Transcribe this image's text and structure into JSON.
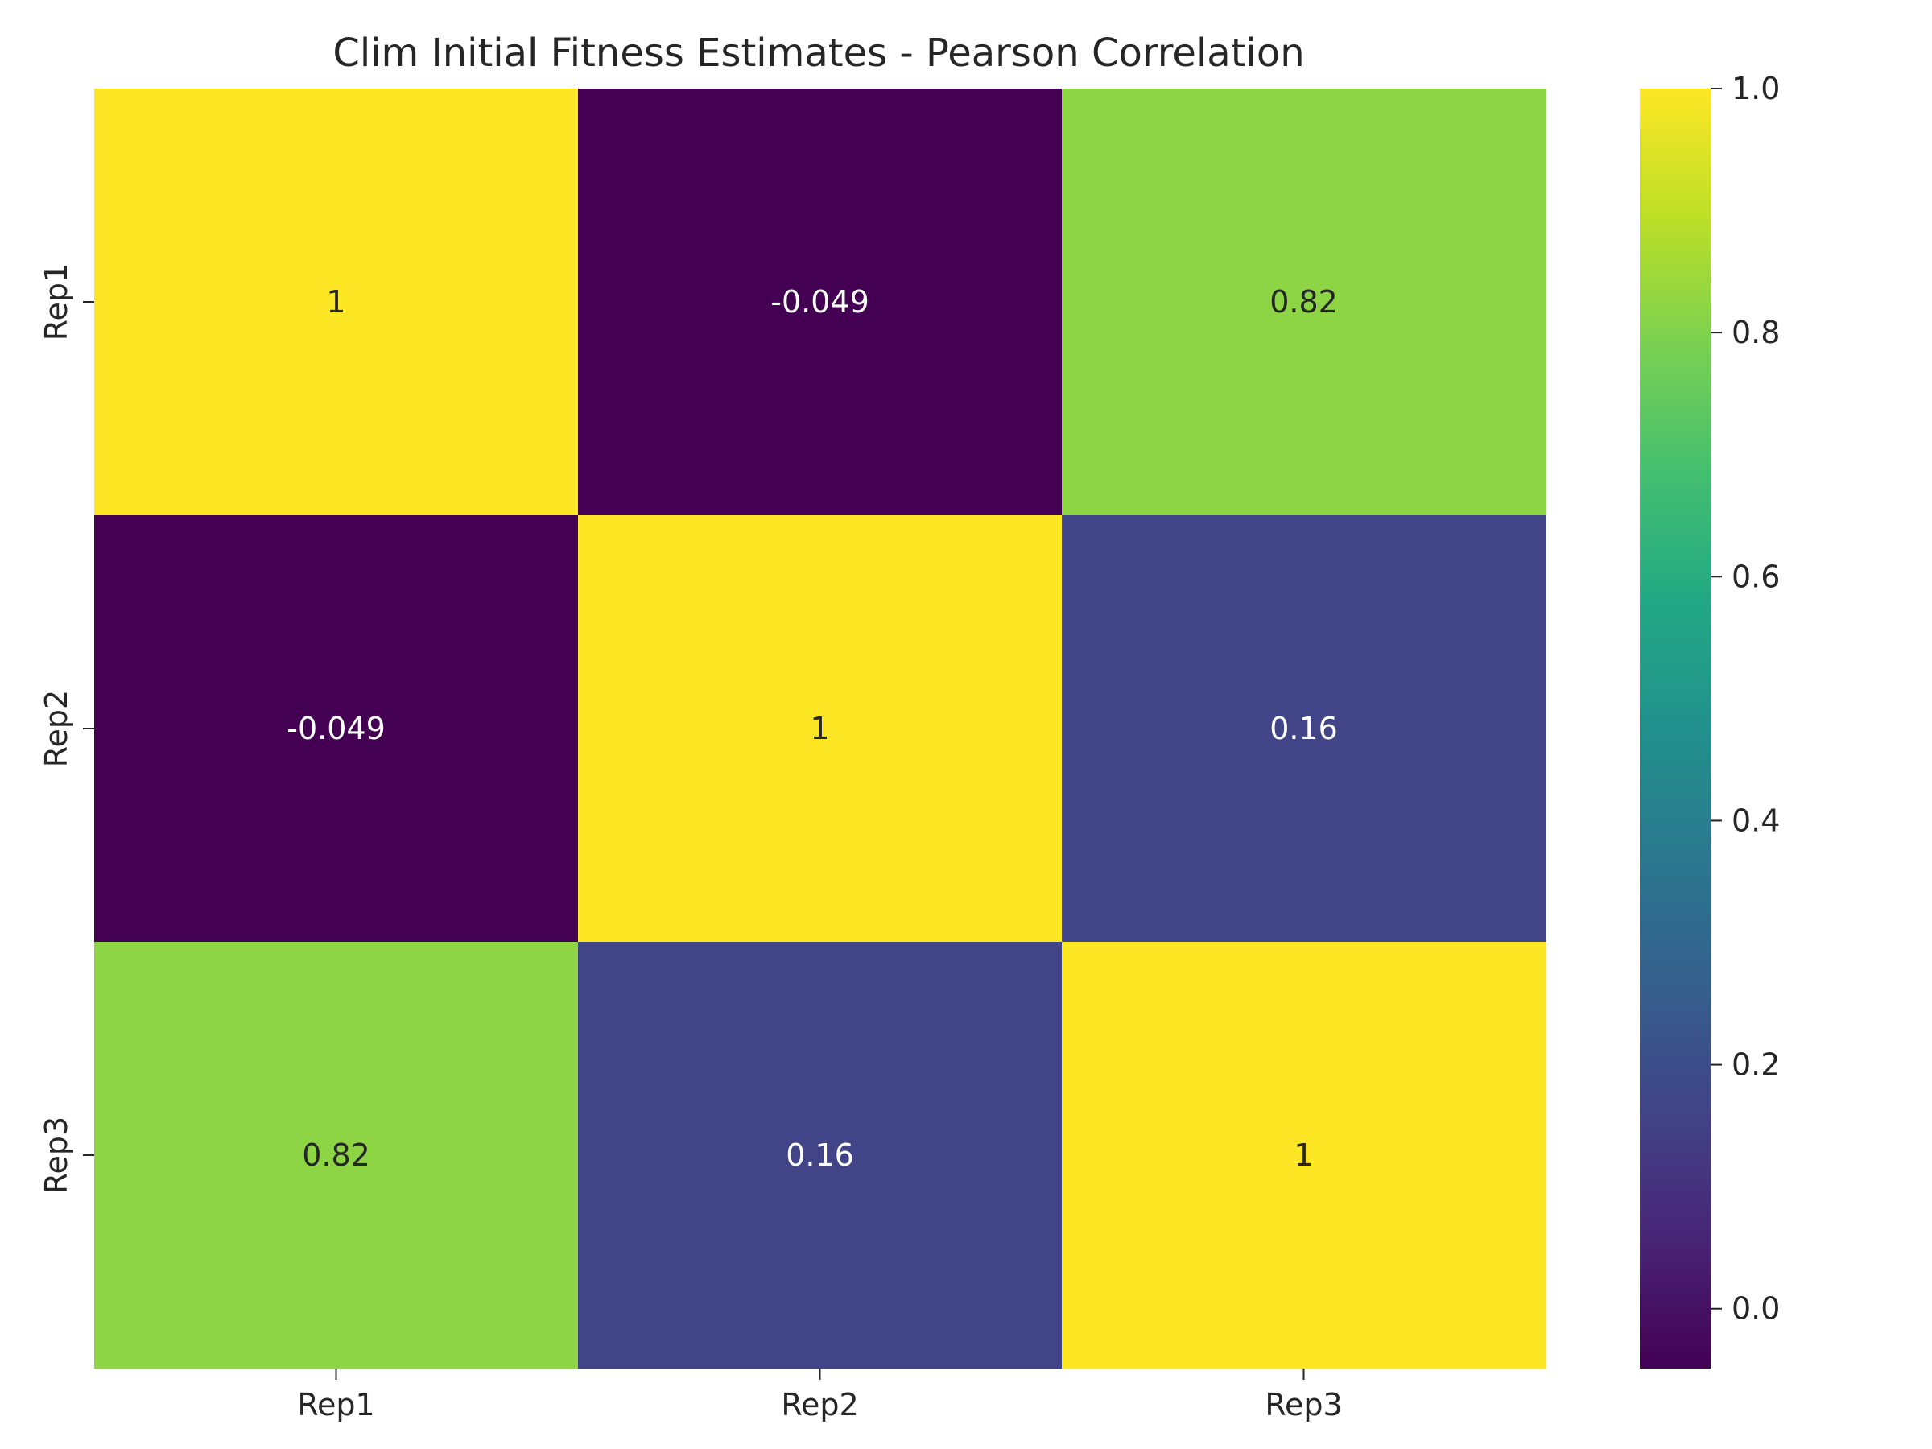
{
  "chart_data": {
    "type": "heatmap",
    "title": "Clim Initial Fitness Estimates - Pearson Correlation",
    "x_categories": [
      "Rep1",
      "Rep2",
      "Rep3"
    ],
    "y_categories": [
      "Rep1",
      "Rep2",
      "Rep3"
    ],
    "values": [
      [
        1.0,
        -0.049,
        0.82
      ],
      [
        -0.049,
        1.0,
        0.16
      ],
      [
        0.82,
        0.16,
        1.0
      ]
    ],
    "annotations": [
      [
        "1",
        "-0.049",
        "0.82"
      ],
      [
        "-0.049",
        "1",
        "0.16"
      ],
      [
        "0.82",
        "0.16",
        "1"
      ]
    ],
    "colormap": "viridis",
    "color_range": [
      -0.049,
      1.0
    ],
    "colorbar_ticks": [
      0.0,
      0.2,
      0.4,
      0.6,
      0.8,
      1.0
    ],
    "colorbar_tick_labels": [
      "0.0",
      "0.2",
      "0.4",
      "0.6",
      "0.8",
      "1.0"
    ],
    "xlabel": "",
    "ylabel": "",
    "colors": {
      "text_dark": "#262626",
      "text_light": "#ffffff"
    }
  }
}
